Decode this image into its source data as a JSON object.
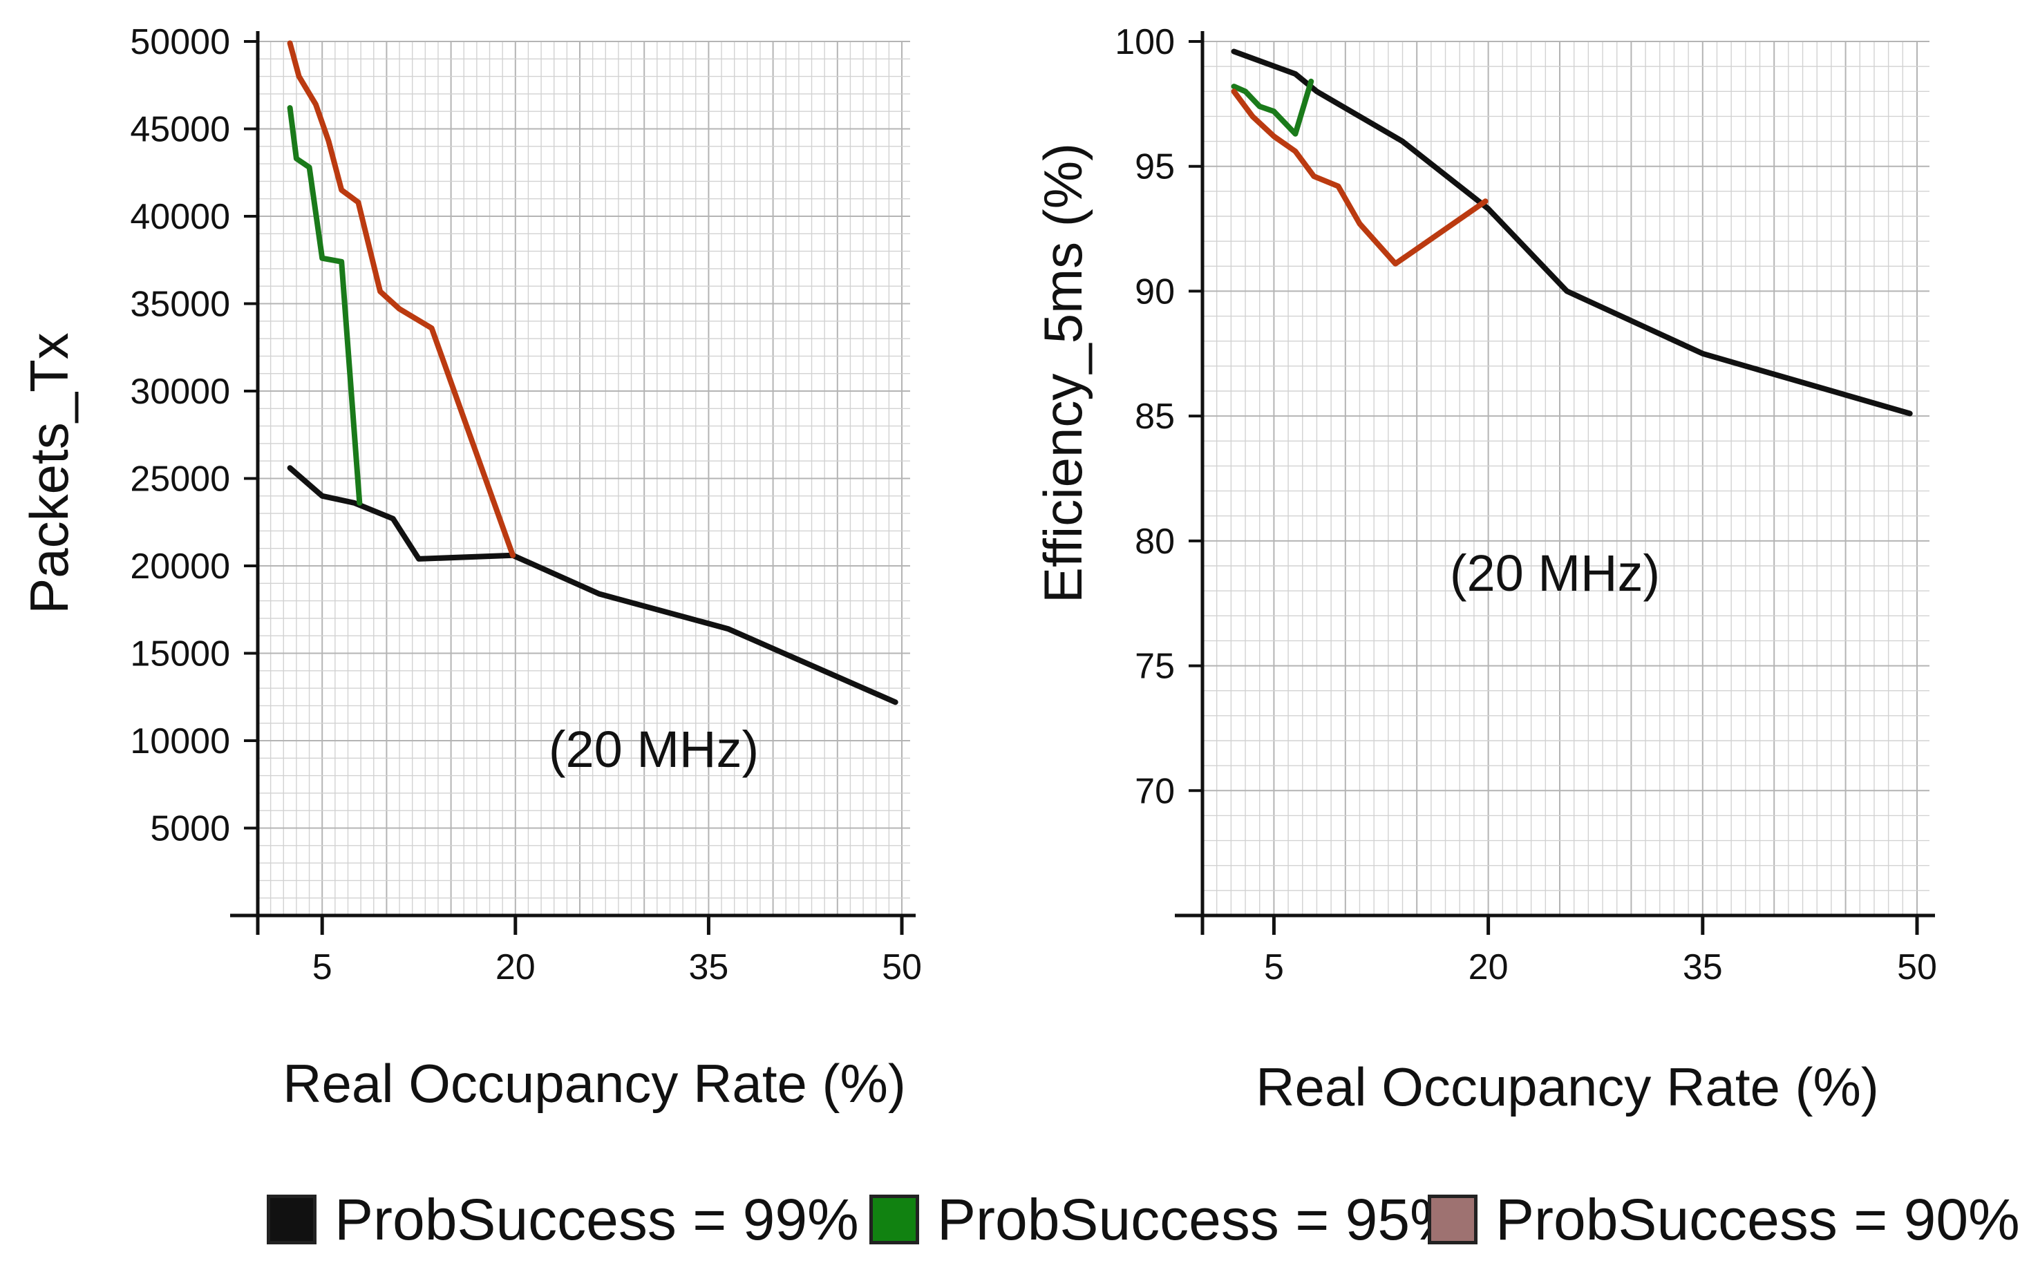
{
  "chart_data": [
    {
      "type": "line",
      "title": "",
      "annotation": "(20 MHz)",
      "xlabel": "Real Occupancy Rate (%)",
      "ylabel": "Packets_Tx",
      "xlim": [
        0,
        50
      ],
      "ylim": [
        0,
        50000
      ],
      "xticks": [
        5,
        20,
        35,
        50
      ],
      "yticks": [
        5000,
        10000,
        15000,
        20000,
        25000,
        30000,
        35000,
        40000,
        45000,
        50000
      ],
      "xtick_labels": [
        "5",
        "20",
        "35",
        "50"
      ],
      "ytick_labels": [
        "5000",
        "10000",
        "15000",
        "20000",
        "25000",
        "30000",
        "35000",
        "40000",
        "45000",
        "50000"
      ],
      "grid": true,
      "series": [
        {
          "name": "ProbSuccess = 99%",
          "color": "#111111",
          "x": [
            2.5,
            5,
            7.5,
            10.5,
            12.5,
            19.8,
            26.5,
            36.5,
            49.5
          ],
          "y": [
            25600,
            24000,
            23600,
            22700,
            20400,
            20600,
            18400,
            16400,
            12200
          ]
        },
        {
          "name": "ProbSuccess = 95%",
          "color": "#1a7a1a",
          "x": [
            2.5,
            3,
            4,
            5,
            6.5,
            7.9
          ],
          "y": [
            46200,
            43300,
            42800,
            37600,
            37400,
            23600
          ]
        },
        {
          "name": "ProbSuccess = 90%",
          "color": "#bb3a10",
          "x": [
            2.5,
            3.2,
            4.5,
            5.5,
            6.5,
            7.8,
            9.5,
            11,
            13.5,
            19.8
          ],
          "y": [
            49900,
            48000,
            46400,
            44300,
            41500,
            40800,
            35700,
            34700,
            33600,
            20600
          ]
        }
      ]
    },
    {
      "type": "line",
      "title": "",
      "annotation": "(20 MHz)",
      "xlabel": "Real Occupancy Rate (%)",
      "ylabel": "Efficiency_5ms  (%)",
      "xlim": [
        0,
        50
      ],
      "ylim": [
        65,
        100
      ],
      "xticks": [
        5,
        20,
        35,
        50
      ],
      "yticks": [
        70,
        75,
        80,
        85,
        90,
        95,
        100
      ],
      "xtick_labels": [
        "5",
        "20",
        "35",
        "50"
      ],
      "ytick_labels": [
        "70",
        "75",
        "80",
        "85",
        "90",
        "95",
        "100"
      ],
      "grid": true,
      "series": [
        {
          "name": "ProbSuccess = 99%",
          "color": "#111111",
          "x": [
            2.2,
            6.5,
            8,
            14,
            20,
            25.5,
            35,
            49.5
          ],
          "y": [
            99.6,
            98.7,
            98.0,
            96.0,
            93.3,
            90.0,
            87.5,
            85.1
          ]
        },
        {
          "name": "ProbSuccess = 95%",
          "color": "#1a7a1a",
          "x": [
            2.2,
            3,
            4,
            5,
            6.5,
            7.6
          ],
          "y": [
            98.2,
            98.0,
            97.4,
            97.2,
            96.3,
            98.4
          ]
        },
        {
          "name": "ProbSuccess = 90%",
          "color": "#bb3a10",
          "x": [
            2.2,
            3.5,
            5,
            6.5,
            7.8,
            9.5,
            11,
            13.5,
            19.8
          ],
          "y": [
            98.0,
            97.0,
            96.2,
            95.6,
            94.6,
            94.2,
            92.7,
            91.1,
            93.6
          ]
        }
      ]
    }
  ],
  "legend": [
    {
      "label": "ProbSuccess = 99%",
      "color": "#111111"
    },
    {
      "label": "ProbSuccess = 95%",
      "color": "#118211"
    },
    {
      "label": "ProbSuccess = 90%",
      "color": "#9e7271"
    }
  ]
}
